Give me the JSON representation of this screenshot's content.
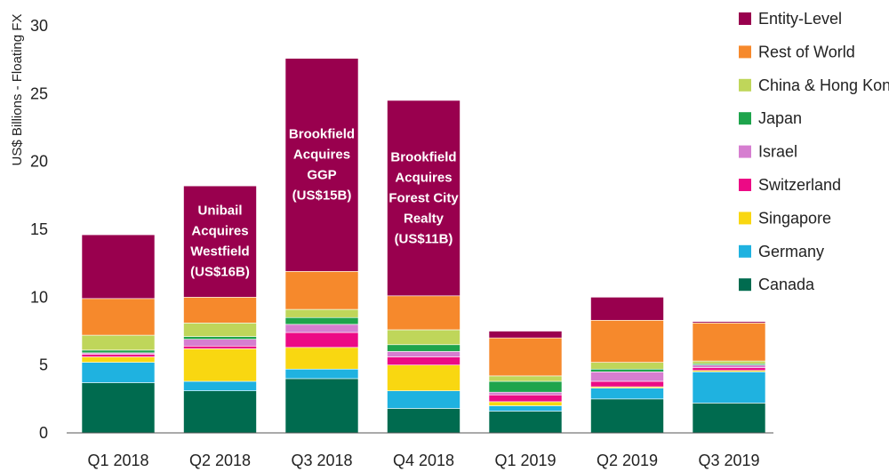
{
  "chart_data": {
    "type": "bar",
    "stacked": true,
    "ylabel": "US$ Billions - Floating FX",
    "ylim": [
      0,
      30
    ],
    "yticks": [
      0,
      5,
      10,
      15,
      20,
      25,
      30
    ],
    "grid": false,
    "legend_position": "right",
    "categories": [
      "Q1 2018",
      "Q2 2018",
      "Q3 2018",
      "Q4 2018",
      "Q1 2019",
      "Q2 2019",
      "Q3 2019"
    ],
    "series": [
      {
        "name": "Canada",
        "color": "#006b4f",
        "values": [
          3.7,
          3.1,
          4.0,
          1.8,
          1.6,
          2.5,
          2.2
        ]
      },
      {
        "name": "Germany",
        "color": "#1fb2e0",
        "values": [
          1.5,
          0.7,
          0.7,
          1.3,
          0.4,
          0.8,
          2.3
        ]
      },
      {
        "name": "Singapore",
        "color": "#f9d711",
        "values": [
          0.4,
          2.4,
          1.6,
          1.9,
          0.3,
          0.1,
          0.1
        ]
      },
      {
        "name": "Switzerland",
        "color": "#ec0a85",
        "values": [
          0.2,
          0.2,
          1.1,
          0.6,
          0.5,
          0.4,
          0.2
        ]
      },
      {
        "name": "Israel",
        "color": "#d67ed0",
        "values": [
          0.1,
          0.5,
          0.6,
          0.4,
          0.2,
          0.7,
          0.2
        ]
      },
      {
        "name": "Japan",
        "color": "#1ea44c",
        "values": [
          0.2,
          0.2,
          0.5,
          0.5,
          0.8,
          0.2,
          0.1
        ]
      },
      {
        "name": "China & Hong Kong",
        "color": "#bfd65a",
        "values": [
          1.1,
          1.0,
          0.6,
          1.1,
          0.4,
          0.5,
          0.2
        ]
      },
      {
        "name": "Rest of World",
        "color": "#f6892c",
        "values": [
          2.7,
          1.9,
          2.8,
          2.5,
          2.8,
          3.1,
          2.8
        ]
      },
      {
        "name": "Entity-Level",
        "color": "#99004e",
        "values": [
          4.7,
          8.2,
          15.7,
          14.4,
          0.5,
          1.7,
          0.1
        ]
      }
    ],
    "legend_order": [
      "Entity-Level",
      "Rest of World",
      "China & Hong Kong",
      "Japan",
      "Israel",
      "Switzerland",
      "Singapore",
      "Germany",
      "Canada"
    ],
    "annotations": [
      {
        "category": "Q2 2018",
        "lines": [
          "Unibail",
          "Acquires",
          "Westfield",
          "(US$16B)"
        ]
      },
      {
        "category": "Q3 2018",
        "lines": [
          "Brookfield",
          "Acquires",
          "GGP",
          "(US$15B)"
        ]
      },
      {
        "category": "Q4 2018",
        "lines": [
          "Brookfield",
          "Acquires",
          "Forest City",
          "Realty",
          "(US$11B)"
        ]
      }
    ]
  }
}
